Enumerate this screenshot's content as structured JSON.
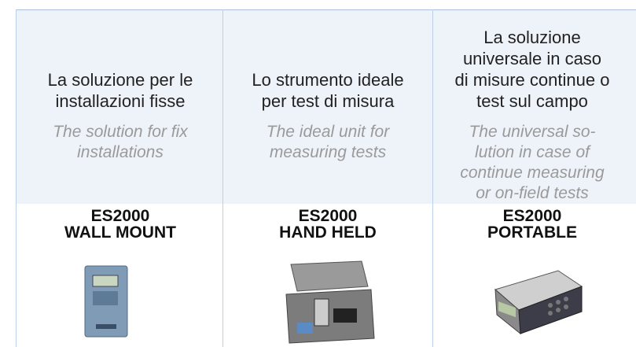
{
  "columns": [
    {
      "italian": [
        "La soluzione per le",
        "installazioni fisse"
      ],
      "english": [
        "The solution for fix",
        "installations"
      ],
      "product": [
        "ES2000",
        "WALL MOUNT"
      ]
    },
    {
      "italian": [
        "Lo strumento ideale",
        "per test di misura"
      ],
      "english": [
        "The ideal unit for",
        "measuring tests"
      ],
      "product": [
        "ES2000",
        "HAND HELD"
      ]
    },
    {
      "italian": [
        "La soluzione",
        "universale in caso",
        "di misure continue o",
        "test sul campo"
      ],
      "english": [
        "The universal so-",
        "lution in case of",
        "continue measuring",
        "or on-field tests"
      ],
      "product": [
        "ES2000",
        "PORTABLE"
      ]
    }
  ]
}
